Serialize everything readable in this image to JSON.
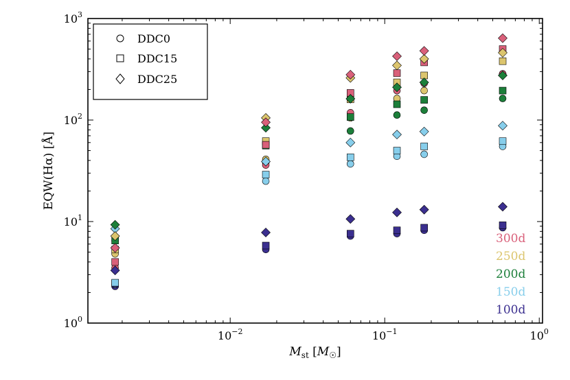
{
  "chart_data": {
    "type": "scatter",
    "xscale": "log",
    "yscale": "log",
    "xlim": [
      0.0012,
      1.05
    ],
    "ylim": [
      1,
      1000
    ],
    "xlabel": "M_st [M_☉]",
    "xlabel_parts": {
      "main": "M",
      "sub": "st",
      "bracket_open": " [",
      "unit": "M",
      "unit_sub": "☉",
      "bracket_close": "]"
    },
    "ylabel": "EQW(Hα) [Å]",
    "x_ticks": [
      {
        "value": 0.01,
        "base": "10",
        "exp": "−2"
      },
      {
        "value": 0.1,
        "base": "10",
        "exp": "−1"
      },
      {
        "value": 1,
        "base": "10",
        "exp": "0"
      }
    ],
    "y_ticks": [
      {
        "value": 1,
        "base": "10",
        "exp": "0"
      },
      {
        "value": 10,
        "base": "10",
        "exp": "1"
      },
      {
        "value": 100,
        "base": "10",
        "exp": "2"
      },
      {
        "value": 1000,
        "base": "10",
        "exp": "3"
      }
    ],
    "legend": {
      "placement": "top-left",
      "entries": [
        {
          "label": "DDC0",
          "marker": "circle"
        },
        {
          "label": "DDC15",
          "marker": "square"
        },
        {
          "label": "DDC25",
          "marker": "diamond"
        }
      ]
    },
    "epoch_labels": [
      {
        "label": "300d",
        "color": "#d9607a"
      },
      {
        "label": "250d",
        "color": "#dcc56e"
      },
      {
        "label": "200d",
        "color": "#1c7f3a"
      },
      {
        "label": "150d",
        "color": "#87ceeb"
      },
      {
        "label": "100d",
        "color": "#3b2f8f"
      }
    ],
    "x": [
      0.0018,
      0.017,
      0.06,
      0.12,
      0.18,
      0.58
    ],
    "series": [
      {
        "model": "DDC0",
        "marker": "circle",
        "epoch": "100d",
        "color": "#3b2f8f",
        "values": [
          2.3,
          5.3,
          7.2,
          7.6,
          8.2,
          8.7
        ]
      },
      {
        "model": "DDC0",
        "marker": "circle",
        "epoch": "150d",
        "color": "#87ceeb",
        "values": [
          2.4,
          25,
          37,
          44,
          46,
          55
        ]
      },
      {
        "model": "DDC0",
        "marker": "circle",
        "epoch": "200d",
        "color": "#1c7f3a",
        "values": [
          6.5,
          38,
          78,
          112,
          125,
          163
        ]
      },
      {
        "model": "DDC0",
        "marker": "circle",
        "epoch": "250d",
        "color": "#dcc56e",
        "values": [
          4.8,
          41,
          105,
          163,
          195,
          285
        ]
      },
      {
        "model": "DDC0",
        "marker": "circle",
        "epoch": "300d",
        "color": "#d9607a",
        "values": [
          3.5,
          36,
          118,
          195,
          230,
          285
        ]
      },
      {
        "model": "DDC15",
        "marker": "square",
        "epoch": "100d",
        "color": "#3b2f8f",
        "values": [
          2.45,
          5.8,
          7.6,
          8.2,
          8.7,
          9.2
        ]
      },
      {
        "model": "DDC15",
        "marker": "square",
        "epoch": "150d",
        "color": "#87ceeb",
        "values": [
          2.5,
          29,
          43,
          50,
          55,
          62
        ]
      },
      {
        "model": "DDC15",
        "marker": "square",
        "epoch": "200d",
        "color": "#1c7f3a",
        "values": [
          6.5,
          56,
          107,
          143,
          158,
          195
        ]
      },
      {
        "model": "DDC15",
        "marker": "square",
        "epoch": "250d",
        "color": "#dcc56e",
        "values": [
          5.3,
          62,
          160,
          235,
          275,
          380
        ]
      },
      {
        "model": "DDC15",
        "marker": "square",
        "epoch": "300d",
        "color": "#d9607a",
        "values": [
          4.0,
          57,
          185,
          290,
          370,
          500
        ]
      },
      {
        "model": "DDC25",
        "marker": "diamond",
        "epoch": "100d",
        "color": "#3b2f8f",
        "values": [
          3.3,
          7.8,
          10.6,
          12.3,
          13.1,
          14.0
        ]
      },
      {
        "model": "DDC25",
        "marker": "diamond",
        "epoch": "150d",
        "color": "#87ceeb",
        "values": [
          8.5,
          39,
          60,
          72,
          77,
          88
        ]
      },
      {
        "model": "DDC25",
        "marker": "diamond",
        "epoch": "200d",
        "color": "#1c7f3a",
        "values": [
          9.3,
          84,
          162,
          210,
          235,
          275
        ]
      },
      {
        "model": "DDC25",
        "marker": "diamond",
        "epoch": "250d",
        "color": "#dcc56e",
        "values": [
          7.2,
          105,
          260,
          345,
          400,
          460
        ]
      },
      {
        "model": "DDC25",
        "marker": "diamond",
        "epoch": "300d",
        "color": "#d9607a",
        "values": [
          5.5,
          95,
          280,
          425,
          480,
          640
        ]
      }
    ]
  }
}
